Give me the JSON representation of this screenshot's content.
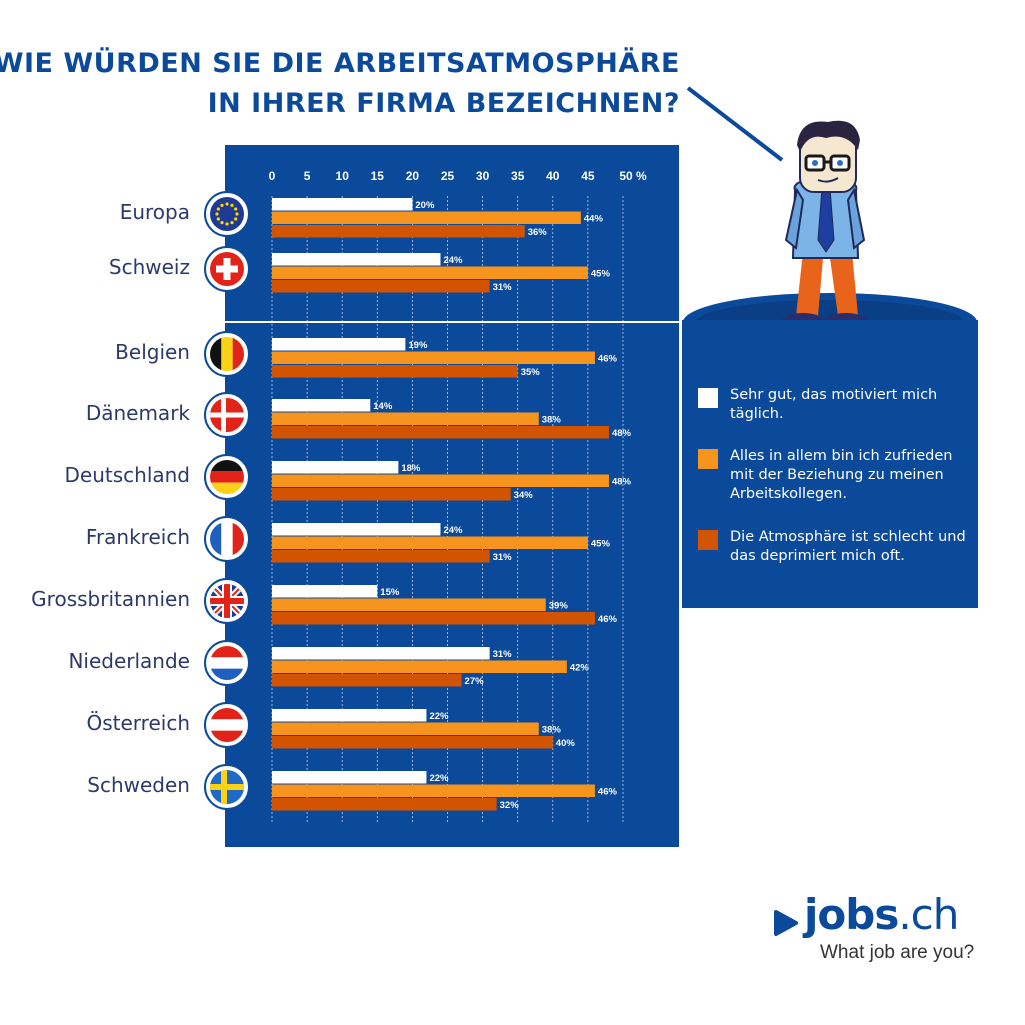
{
  "title": {
    "line1": "WIE WÜRDEN SIE DIE ARBEITSATMOSPHÄRE",
    "line2": "IN IHRER FIRMA BEZEICHNEN?"
  },
  "legend": [
    {
      "label": "Sehr gut, das motiviert mich täglich.",
      "color": "#ffffff"
    },
    {
      "label": "Alles in allem bin ich zufrieden mit der Beziehung zu meinen Arbeitskollegen.",
      "color": "#f7941d"
    },
    {
      "label": "Die Atmosphäre ist schlecht und das deprimiert mich oft.",
      "color": "#d35400"
    }
  ],
  "logo": {
    "name_main": "jobs",
    "name_tld": ".ch",
    "tagline": "What job are you?"
  },
  "colors": {
    "panel": "#0b4a9b",
    "white": "#ffffff",
    "orange": "#f7941d",
    "dark_orange": "#d35400"
  },
  "chart_data": {
    "type": "bar",
    "orientation": "horizontal",
    "unit": "%",
    "xlim": [
      0,
      50
    ],
    "ticks": [
      "0",
      "5",
      "10",
      "15",
      "20",
      "25",
      "30",
      "35",
      "40",
      "45",
      "50 %"
    ],
    "categories": [
      "Europa",
      "Schweiz",
      "Belgien",
      "Dänemark",
      "Deutschland",
      "Frankreich",
      "Grossbritannien",
      "Niederlande",
      "Österreich",
      "Schweden"
    ],
    "flags": [
      "eu-flag-icon",
      "swiss-flag-icon",
      "belgium-flag-icon",
      "denmark-flag-icon",
      "germany-flag-icon",
      "france-flag-icon",
      "uk-flag-icon",
      "netherlands-flag-icon",
      "austria-flag-icon",
      "sweden-flag-icon"
    ],
    "series": [
      {
        "values": [
          20,
          24,
          19,
          14,
          18,
          24,
          15,
          31,
          22,
          22
        ],
        "color": "#ffffff"
      },
      {
        "values": [
          44,
          45,
          46,
          38,
          48,
          45,
          39,
          42,
          38,
          46
        ],
        "color": "#f7941d"
      },
      {
        "values": [
          36,
          31,
          35,
          48,
          34,
          31,
          46,
          27,
          40,
          32
        ],
        "color": "#d35400"
      }
    ],
    "grid": true,
    "legend_position": "right"
  }
}
